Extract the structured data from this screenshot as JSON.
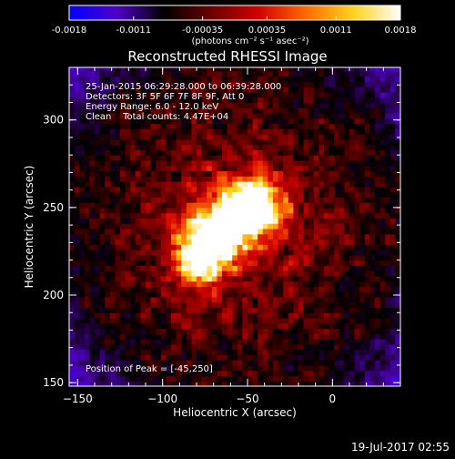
{
  "chart_data": {
    "type": "heatmap",
    "title": "Reconstructed RHESSI Image",
    "xlabel": "Heliocentric X (arcsec)",
    "ylabel": "Heliocentric Y (arcsec)",
    "xlim": [
      -155,
      40
    ],
    "ylim": [
      148,
      330
    ],
    "x_ticks": [
      -150,
      -100,
      -50,
      0
    ],
    "y_ticks": [
      150,
      200,
      250,
      300
    ],
    "annotations": [
      "25-Jan-2015 06:29:28.000 to 06:39:28.000",
      "Detectors: 3F 5F 6F 7F 8F 9F, Att 0",
      "Energy Range: 6.0 - 12.0 keV",
      "Clean    Total counts: 4.47E+04"
    ],
    "peak_label": "Position of Peak = [-45,250]",
    "peak": [
      -45,
      250
    ],
    "colorbar": {
      "range": [
        -0.0018,
        0.0018
      ],
      "ticks": [
        "-0.0018",
        "-0.0011",
        "-0.00035",
        "0.00035",
        "0.0011",
        "0.0018"
      ],
      "unit_label": "(photons cm⁻² s⁻¹ asec⁻²)",
      "colors": [
        "#0000ff",
        "#5000c8",
        "#000000",
        "#6a0000",
        "#d20000",
        "#ff6a00",
        "#ffd21e",
        "#ffffff"
      ]
    },
    "source": {
      "center": [
        -58,
        238
      ],
      "arms": [
        [
          -45,
          250
        ],
        [
          -62,
          240
        ],
        [
          -75,
          228
        ],
        [
          -82,
          215
        ]
      ],
      "peak_value": 0.0018
    }
  },
  "footer": {
    "timestamp": "19-Jul-2017 02:55"
  }
}
